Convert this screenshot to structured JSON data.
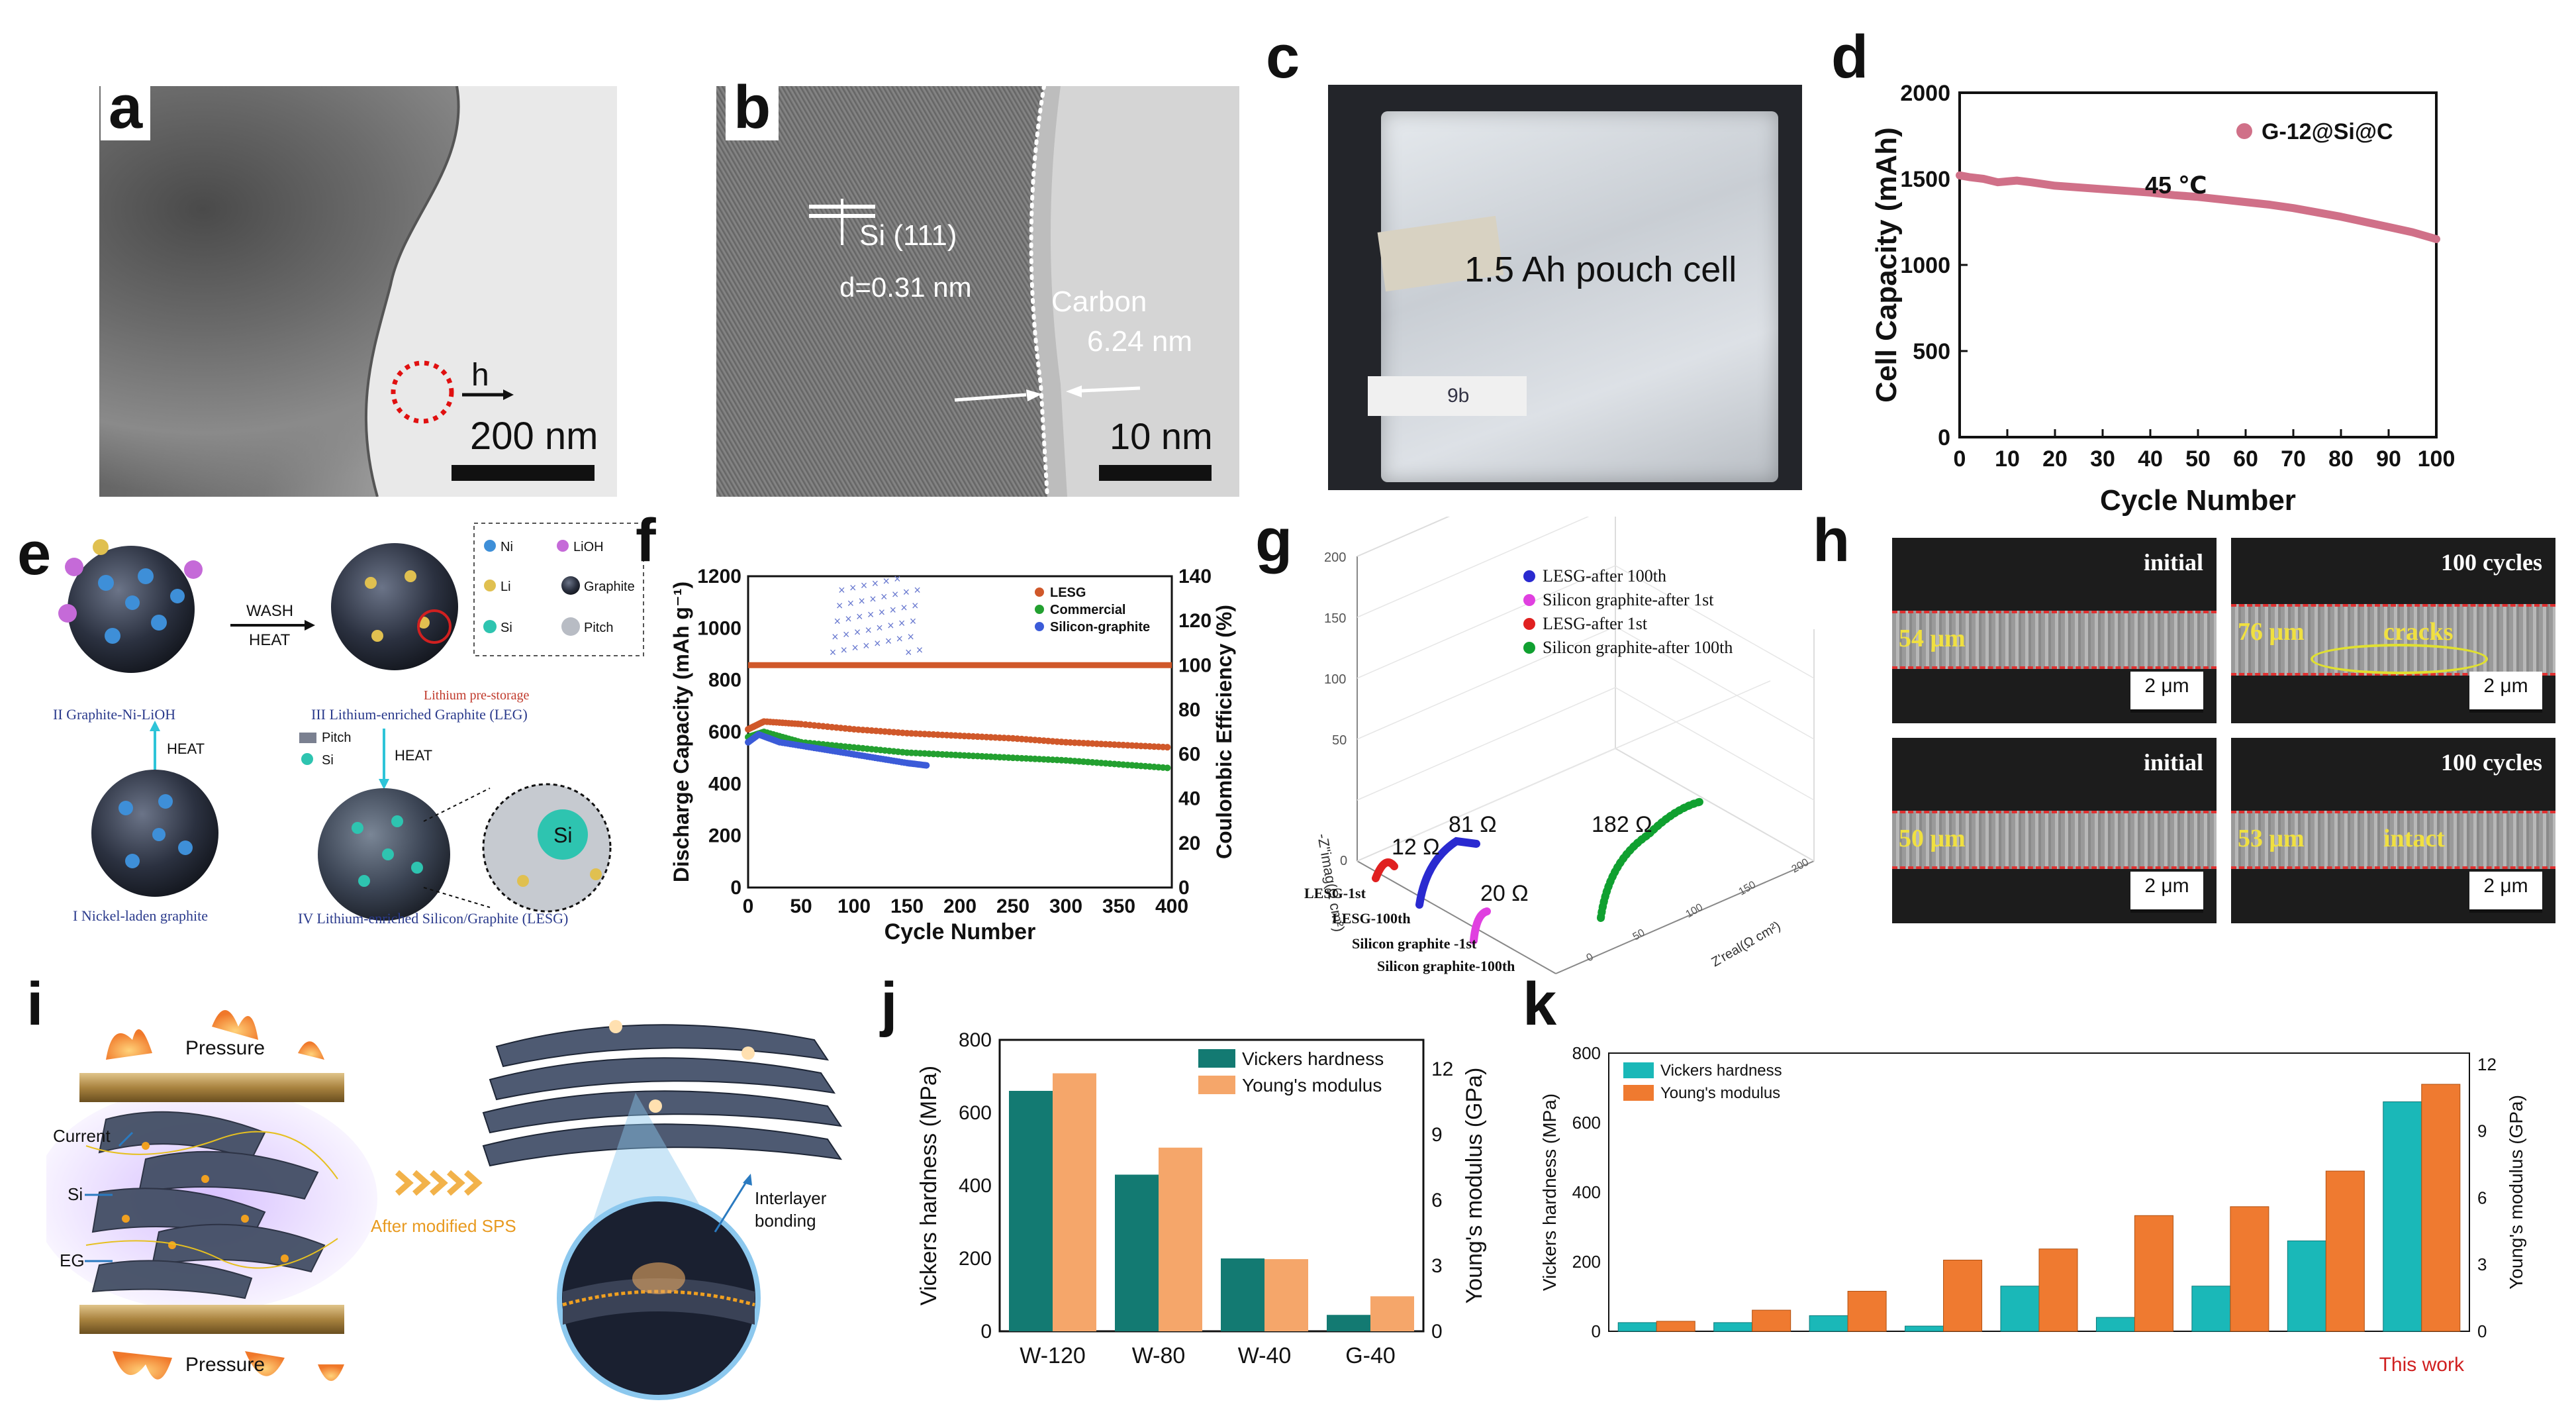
{
  "figure": {
    "panel_letters": {
      "a": "a",
      "b": "b",
      "c": "c",
      "d": "d",
      "e": "e",
      "f": "f",
      "g": "g",
      "h": "h",
      "i": "i",
      "j": "j",
      "k": "k"
    }
  },
  "panel_a": {
    "marker_label": "h",
    "scale_bar": "200 nm"
  },
  "panel_b": {
    "lattice_label": "Si (111)",
    "d_spacing": "d=0.31 nm",
    "coating_label": "Carbon",
    "coating_thickness": "6.24 nm",
    "scale_bar": "10 nm"
  },
  "panel_c": {
    "label": "1.5 Ah pouch cell",
    "tag": "9b"
  },
  "panel_e": {
    "legend": {
      "ni": "Ni",
      "lioh": "LiOH",
      "li": "Li",
      "graphite": "Graphite",
      "si": "Si",
      "pitch": "Pitch"
    },
    "wash_label": "WASH",
    "heat_label": "HEAT",
    "heat_left": "HEAT",
    "heat_right": "HEAT",
    "pitch_label": "Pitch",
    "si_label": "Si",
    "si_zoom": "Si",
    "lithium_prestorage": "Lithium pre-storage",
    "caption_II": "II  Graphite-Ni-LiOH",
    "caption_III": "III  Lithium-enriched Graphite (LEG)",
    "caption_I": "I  Nickel-laden graphite",
    "caption_IV": "IV Lithium-enriched Silicon/Graphite (LESG)",
    "colors": {
      "ni": "#3e8fd8",
      "lioh": "#c56ad8",
      "li": "#e0c050",
      "si": "#2ec4b0",
      "red_caption": "#c0392b",
      "caption": "#2a3a8c"
    }
  },
  "panel_g": {
    "legend": [
      "LESG-after 100th",
      "Silicon graphite-after 1st",
      "LESG-after 1st",
      "Silicon graphite-after 100th"
    ],
    "legend_colors": [
      "#2a2ad0",
      "#e040e0",
      "#e02020",
      "#10a030"
    ],
    "resistances": [
      "12 Ω",
      "81 Ω",
      "20 Ω",
      "182 Ω"
    ],
    "z_ticks": [
      "200",
      "150",
      "100",
      "50",
      "0"
    ],
    "z_label": "-Z\"imag(Ω cm²)",
    "x_label": "Z'real(Ω cm²)",
    "x_ticks": [
      "0",
      "50",
      "100",
      "150",
      "200"
    ],
    "cycle_labels": [
      "LESG-1st",
      "LESG-100th",
      "Silicon graphite -1st",
      "Silicon graphite-100th"
    ]
  },
  "panel_h": {
    "cells": [
      {
        "state": "initial",
        "thickness": "54 μm",
        "scale": "2 μm",
        "note": ""
      },
      {
        "state": "100 cycles",
        "thickness": "76 μm",
        "scale": "2 μm",
        "note": "cracks"
      },
      {
        "state": "initial",
        "thickness": "50 μm",
        "scale": "2 μm",
        "note": ""
      },
      {
        "state": "100 cycles",
        "thickness": "53 μm",
        "scale": "2 μm",
        "note": "intact"
      }
    ]
  },
  "panel_i": {
    "pressure_top": "Pressure",
    "pressure_bottom": "Pressure",
    "current": "Current",
    "si": "Si",
    "eg": "EG",
    "process": "After modified SPS",
    "bonding_1": "Interlayer",
    "bonding_2": "bonding"
  },
  "chart_data": [
    {
      "id": "d",
      "type": "line",
      "title": "",
      "xlabel": "Cycle Number",
      "ylabel": "Cell Capacity (mAh)",
      "xlim": [
        0,
        100
      ],
      "ylim": [
        0,
        2000
      ],
      "xticks": [
        "0",
        "10",
        "20",
        "30",
        "40",
        "50",
        "60",
        "70",
        "80",
        "90",
        "100"
      ],
      "yticks": [
        "0",
        "500",
        "1000",
        "1500",
        "2000"
      ],
      "legend": "G-12@Si@C",
      "legend_color": "#d07088",
      "annotation": "45 ℃",
      "x": [
        0,
        2,
        5,
        8,
        10,
        12,
        15,
        20,
        25,
        30,
        35,
        40,
        45,
        50,
        55,
        60,
        65,
        70,
        75,
        80,
        85,
        90,
        95,
        100
      ],
      "y": [
        1520,
        1510,
        1500,
        1480,
        1485,
        1490,
        1480,
        1460,
        1450,
        1440,
        1430,
        1420,
        1405,
        1395,
        1380,
        1365,
        1350,
        1330,
        1305,
        1280,
        1250,
        1220,
        1190,
        1150
      ]
    },
    {
      "id": "f",
      "type": "scatter",
      "xlabel": "Cycle Number",
      "ylabel": "Discharge Capacity (mAh g⁻¹)",
      "y2label": "Coulombic Efficiency (%)",
      "xlim": [
        0,
        400
      ],
      "ylim": [
        0,
        1200
      ],
      "y2lim": [
        0,
        140
      ],
      "xticks": [
        "0",
        "50",
        "100",
        "150",
        "200",
        "250",
        "300",
        "350",
        "400"
      ],
      "yticks": [
        "0",
        "200",
        "400",
        "600",
        "800",
        "1000",
        "1200"
      ],
      "y2ticks": [
        "0",
        "20",
        "40",
        "60",
        "80",
        "100",
        "120",
        "140"
      ],
      "series": [
        {
          "name": "LESG",
          "color": "#d0582a",
          "x": [
            0,
            15,
            50,
            100,
            150,
            200,
            250,
            300,
            350,
            400
          ],
          "y": [
            610,
            640,
            630,
            610,
            595,
            585,
            575,
            560,
            550,
            540
          ]
        },
        {
          "name": "Commercial",
          "color": "#23a030",
          "x": [
            0,
            15,
            50,
            100,
            150,
            200,
            250,
            300,
            350,
            400
          ],
          "y": [
            580,
            600,
            560,
            540,
            520,
            510,
            500,
            490,
            475,
            460
          ]
        },
        {
          "name": "Silicon-graphite",
          "color": "#3b5bd8",
          "x": [
            0,
            10,
            30,
            60,
            90,
            120,
            150,
            170
          ],
          "y": [
            560,
            590,
            560,
            540,
            520,
            500,
            480,
            470
          ]
        }
      ],
      "ce_series": {
        "name": "LESG CE",
        "color": "#d0582a",
        "x": [
          0,
          50,
          100,
          150,
          200,
          250,
          300,
          350,
          400
        ],
        "y": [
          100,
          100,
          100,
          100,
          100,
          100,
          100,
          100,
          100
        ]
      }
    },
    {
      "id": "j",
      "type": "bar",
      "ylabel": "Vickers hardness (MPa)",
      "y2label": "Young's modulus (GPa)",
      "categories": [
        "W-120",
        "W-80",
        "W-40",
        "G-40"
      ],
      "ylim": [
        0,
        800
      ],
      "y2lim": [
        0,
        13.33
      ],
      "yticks": [
        "0",
        "200",
        "400",
        "600",
        "800"
      ],
      "y2ticks": [
        "0",
        "3",
        "6",
        "9",
        "12"
      ],
      "series": [
        {
          "name": "Vickers hardness",
          "color": "#137a72",
          "values": [
            660,
            430,
            200,
            45
          ]
        },
        {
          "name": "Young's modulus",
          "color": "#f5a66a",
          "values": [
            11.8,
            8.4,
            3.3,
            1.6
          ]
        }
      ]
    },
    {
      "id": "k",
      "type": "bar",
      "ylabel": "Vickers hardness (MPa)",
      "y2label": "Young's modulus (GPa)",
      "categories": [
        "",
        "",
        "",
        "",
        "",
        "",
        "",
        "",
        "This work"
      ],
      "ylim": [
        0,
        800
      ],
      "y2lim": [
        0,
        12.5
      ],
      "yticks": [
        "0",
        "200",
        "400",
        "600",
        "800"
      ],
      "y2ticks": [
        "0",
        "3",
        "6",
        "9",
        "12"
      ],
      "series": [
        {
          "name": "Vickers hardness",
          "color": "#1ab8b8",
          "values": [
            25,
            25,
            45,
            15,
            130,
            40,
            130,
            260,
            660
          ]
        },
        {
          "name": "Young's modulus",
          "color": "#ef7a30",
          "values": [
            0.45,
            0.95,
            1.8,
            3.2,
            3.7,
            5.2,
            5.6,
            7.2,
            11.1
          ]
        }
      ],
      "highlight_label": "This work",
      "highlight_color": "#d02020"
    }
  ]
}
